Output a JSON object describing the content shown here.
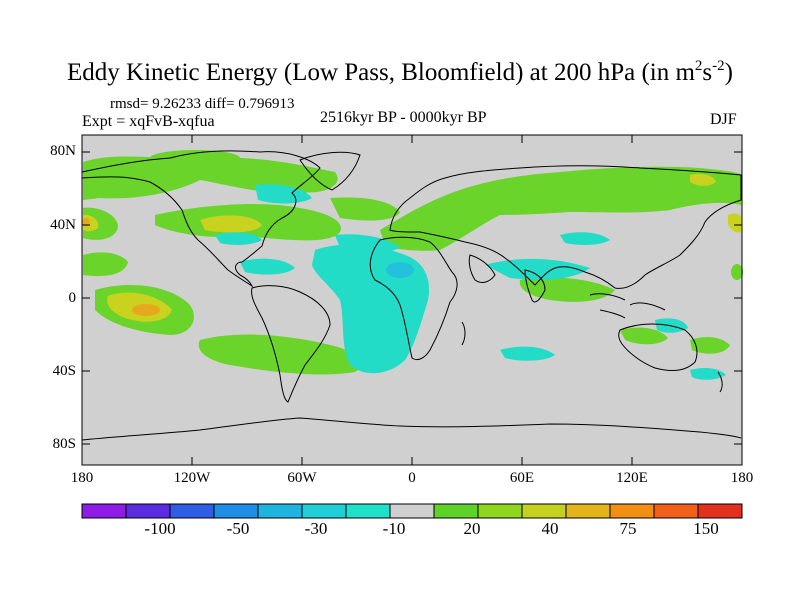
{
  "title": {
    "main": "Eddy Kinetic Energy (Low Pass, Bloomfield) at 200 hPa (in m",
    "sup1": "2",
    "mid": "s",
    "sup2": "-2",
    "end": ")"
  },
  "stats": "rmsd= 9.26233 diff= 0.796913",
  "experiment": "Expt = xqFvB-xqfua",
  "period": "2516kyr BP - 0000kyr BP",
  "season": "DJF",
  "lat_labels": [
    "80N",
    "40N",
    "0",
    "40S",
    "80S"
  ],
  "lon_labels": [
    "180",
    "120W",
    "60W",
    "0",
    "60E",
    "120E",
    "180"
  ],
  "colorbar": {
    "colors": [
      "#8f1ce6",
      "#5a2de0",
      "#2f5de6",
      "#1f8fe6",
      "#1fb3e0",
      "#20cfd8",
      "#1fe0c8",
      "#d0d0d0",
      "#5fd22a",
      "#8fd61f",
      "#c4d21f",
      "#e2b51a",
      "#f08f14",
      "#f0601a",
      "#e2321e"
    ],
    "labels": [
      "-100",
      "-50",
      "-30",
      "-10",
      "20",
      "40",
      "75",
      "150"
    ]
  },
  "colors": {
    "ocean_bg": "#d0d0d0",
    "positive": "#6ad42a",
    "positive_strong": "#c8d21f",
    "peak": "#e6a81c",
    "negative": "#22dcc8",
    "negative_strong": "#22c2dc"
  },
  "chart_data": {
    "type": "heatmap",
    "variable": "Eddy Kinetic Energy difference",
    "units": "m2 s-2",
    "level": "200 hPa",
    "x_range": [
      -180,
      180
    ],
    "y_range": [
      -90,
      90
    ],
    "levels": [
      -100,
      -50,
      -30,
      -10,
      20,
      40,
      75,
      150
    ],
    "regions": [
      {
        "name": "north-pacific-positive",
        "lon": -150,
        "lat": 55,
        "value": 20
      },
      {
        "name": "north-atlantic-positive",
        "lon": -40,
        "lat": 48,
        "value": 20
      },
      {
        "name": "eurasia-positive",
        "lon": 50,
        "lat": 55,
        "value": 20
      },
      {
        "name": "east-pacific-peak",
        "lon": -135,
        "lat": -5,
        "value": 40
      },
      {
        "name": "tropical-atlantic-negative",
        "lon": -20,
        "lat": 0,
        "value": -10
      },
      {
        "name": "south-pacific-positive",
        "lon": -90,
        "lat": -40,
        "value": 20
      }
    ]
  }
}
